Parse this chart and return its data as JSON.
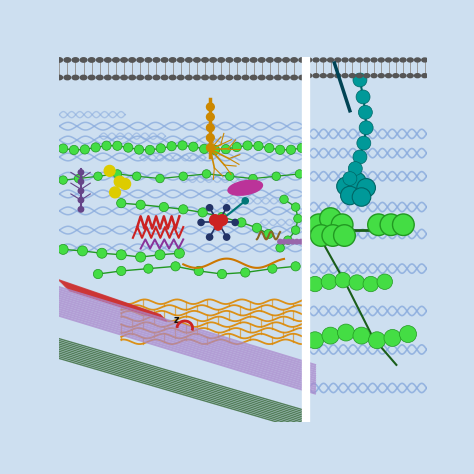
{
  "bg_color": "#cddff0",
  "bg_color_right": "#d0e3f2",
  "membrane_color": "#555555",
  "lipid_tail_color": "#999999",
  "bead_green": "#44dd44",
  "bead_green_edge": "#229922",
  "bead_teal": "#009999",
  "bead_teal_edge": "#006666",
  "collagen_color": "#88aadd",
  "collagen_alpha": 0.75,
  "laminin_color": "#cc8800",
  "yellow_bead": "#ddcc00",
  "purple_receptor": "#664488",
  "pink_blob": "#bb3399",
  "red_zigzag": "#cc2222",
  "purple_zigzag": "#883399",
  "navy_spoke": "#223366",
  "teal_spoke": "#007777",
  "red_bundle": "#cc3333",
  "dark_green_bundle": "#336633",
  "purple_bundle": "#aa88cc",
  "orange_fiber": "#dd8800",
  "orange_curve": "#cc7700",
  "brown_squiggle": "#886622",
  "small_purple_dots": "#9966aa",
  "divider_color": "#ffffff",
  "fibronectin_dark_green": "#1a5e1a"
}
